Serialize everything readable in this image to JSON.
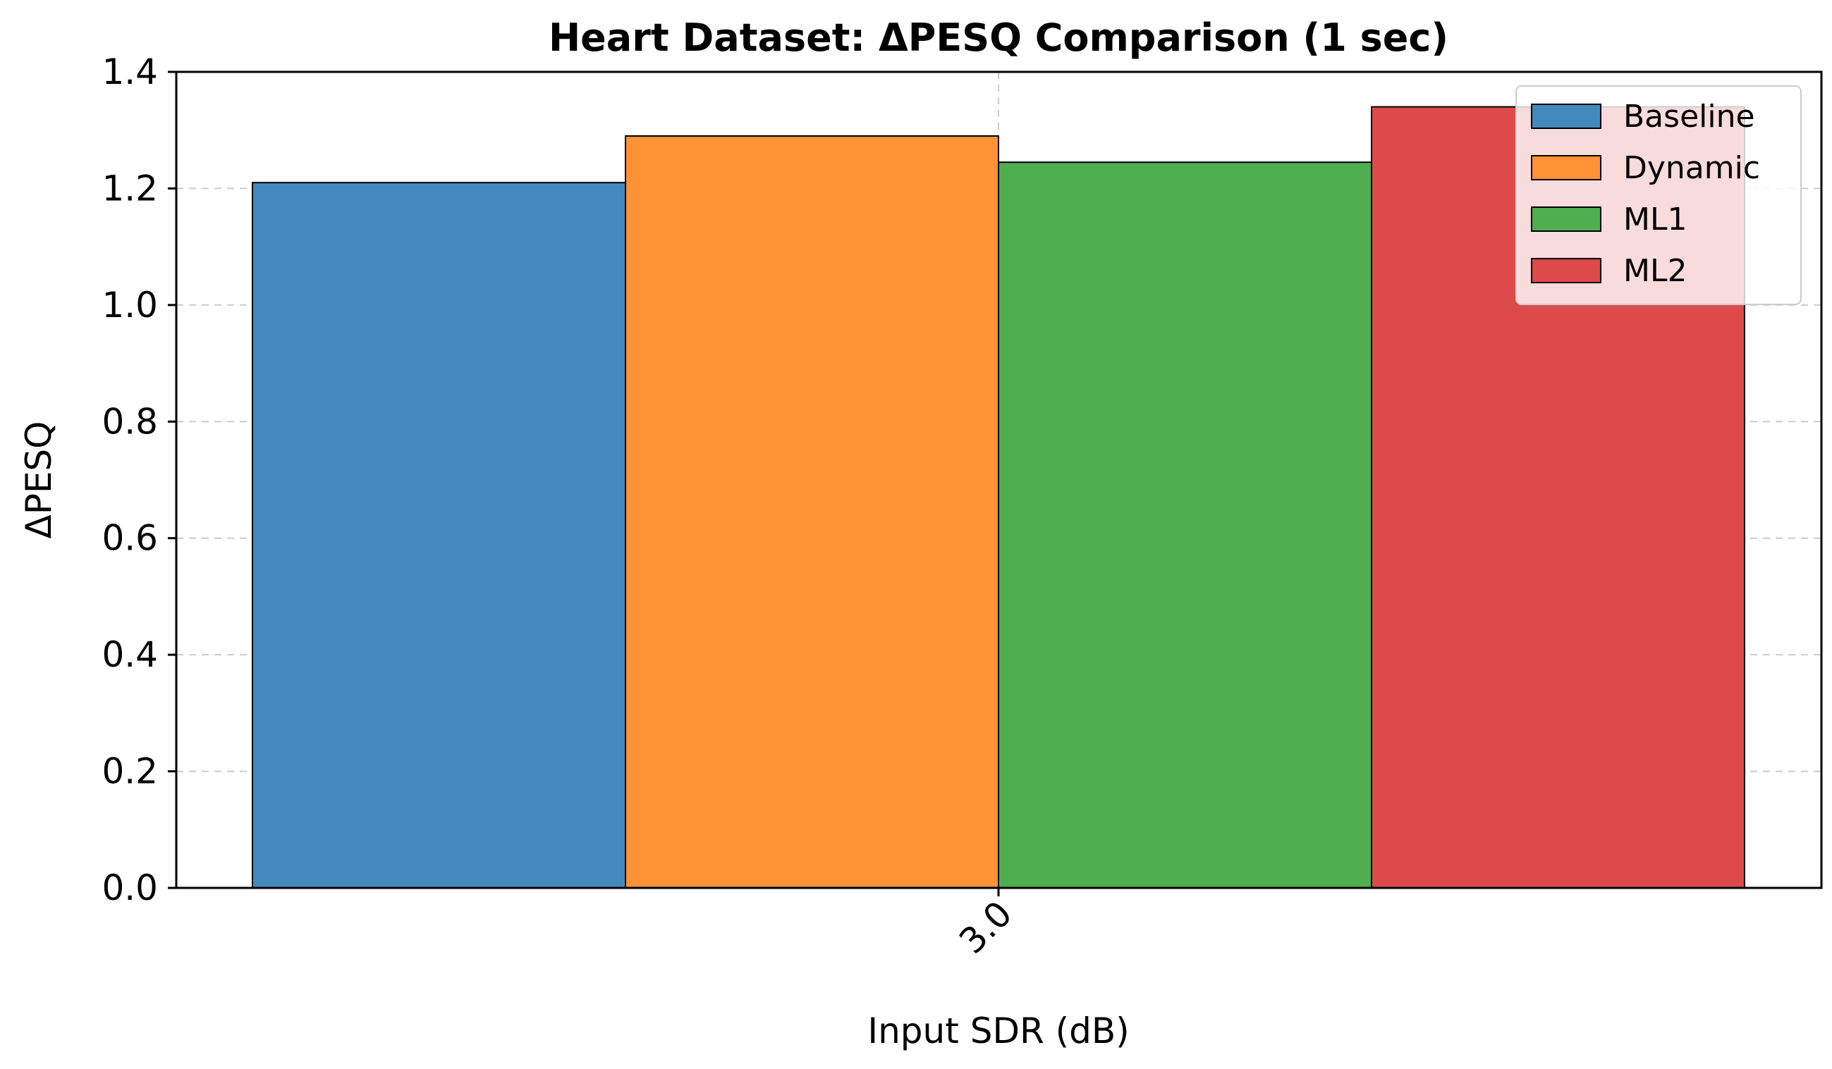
{
  "chart_data": {
    "type": "bar",
    "title": "Heart Dataset: ΔPESQ Comparison (1 sec)",
    "xlabel": "Input SDR (dB)",
    "ylabel": "ΔPESQ",
    "categories": [
      "3.0"
    ],
    "series": [
      {
        "name": "Baseline",
        "values": [
          1.21
        ],
        "color": "#4389be"
      },
      {
        "name": "Dynamic",
        "values": [
          1.29
        ],
        "color": "#fe9237"
      },
      {
        "name": "ML1",
        "values": [
          1.245
        ],
        "color": "#4fae50"
      },
      {
        "name": "ML2",
        "values": [
          1.34
        ],
        "color": "#dc4a4a"
      }
    ],
    "ylim": [
      0,
      1.4
    ],
    "yticks": [
      "0.0",
      "0.2",
      "0.4",
      "0.6",
      "0.8",
      "1.0",
      "1.2",
      "1.4"
    ],
    "grid": true,
    "legend_position": "top-right",
    "edge_color": "#000000"
  }
}
